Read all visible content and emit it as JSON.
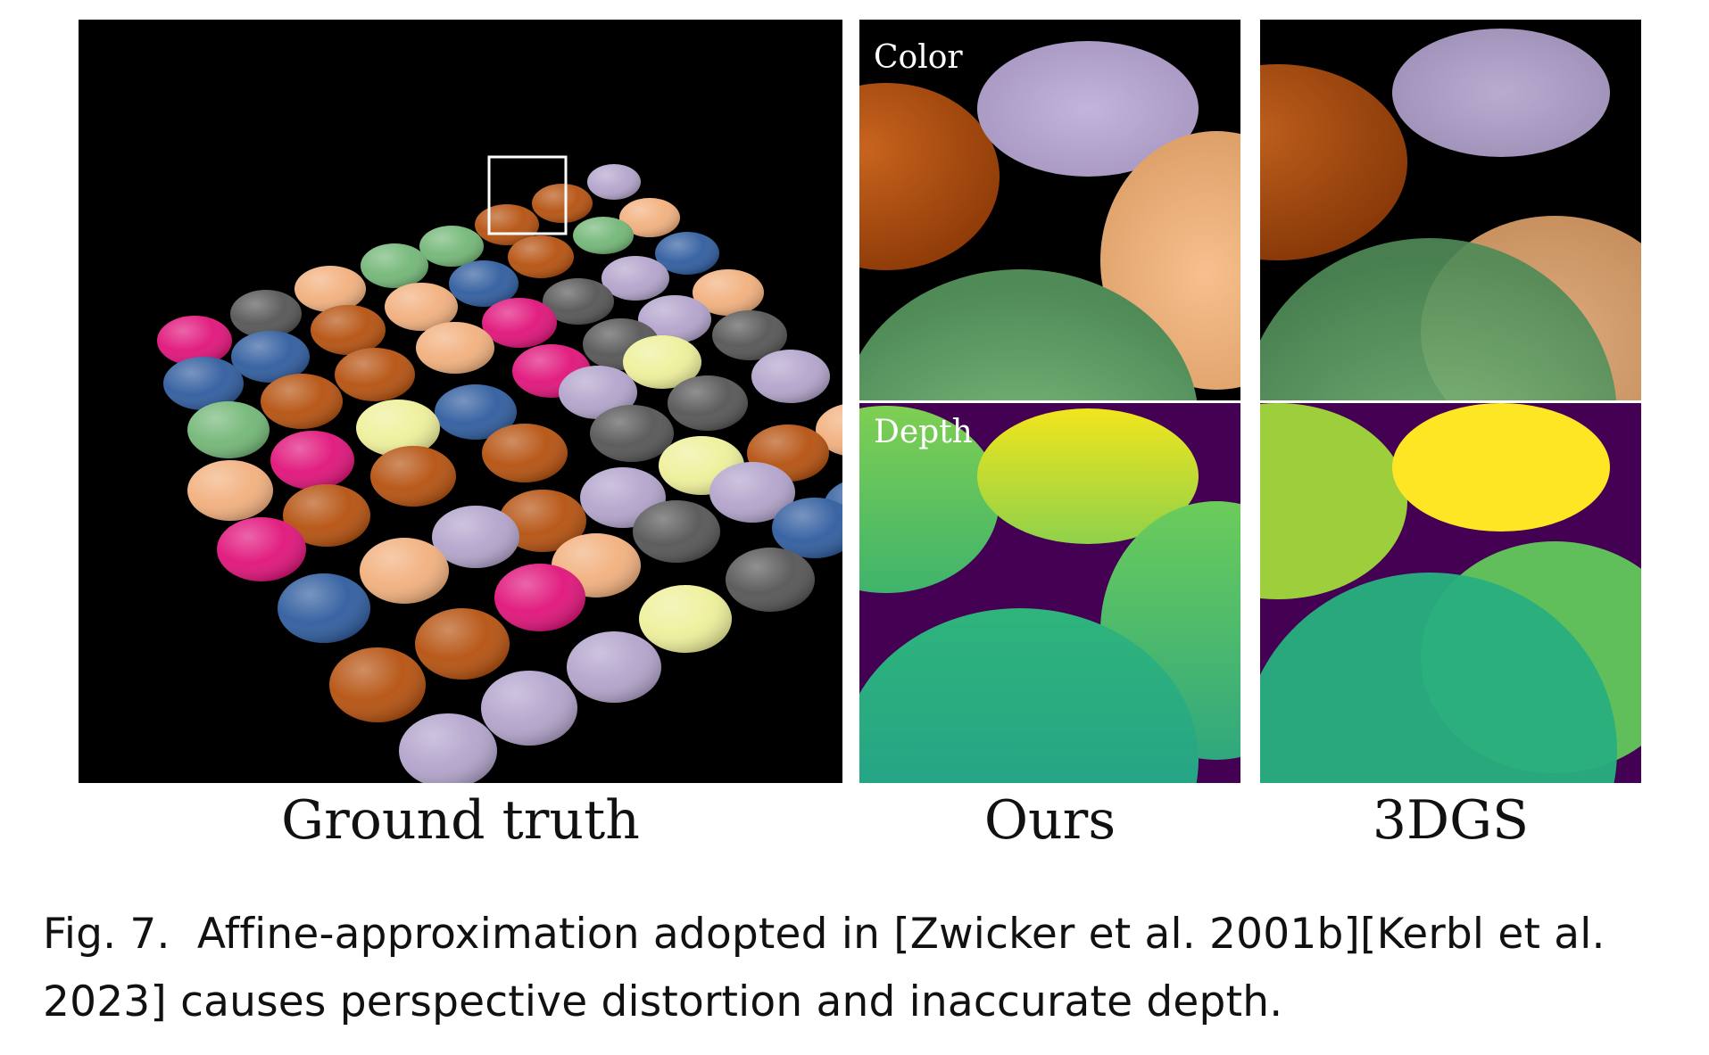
{
  "figure": {
    "panels": {
      "ground_truth": {
        "label": "Ground truth"
      },
      "ours": {
        "label": "Ours",
        "row_labels": {
          "color": "Color",
          "depth": "Depth"
        }
      },
      "baseline": {
        "label": "3DGS"
      }
    },
    "caption": {
      "number": "Fig. 7.",
      "text": "Affine-approximation adopted in [Zwicker et al. 2001b][Kerbl et al. 2023] causes perspective distortion and inaccurate depth."
    },
    "colors": {
      "background": "#000000",
      "depth_background": "#440154",
      "magenta": "#e0137a",
      "blue": "#2f5c9e",
      "green": "#73b777",
      "peach": "#f2b07e",
      "orange": "#b5510f",
      "gray": "#555555",
      "lavender": "#b3a4cc",
      "yellow": "#eef09a",
      "highlight_box": "#ffffff"
    }
  }
}
